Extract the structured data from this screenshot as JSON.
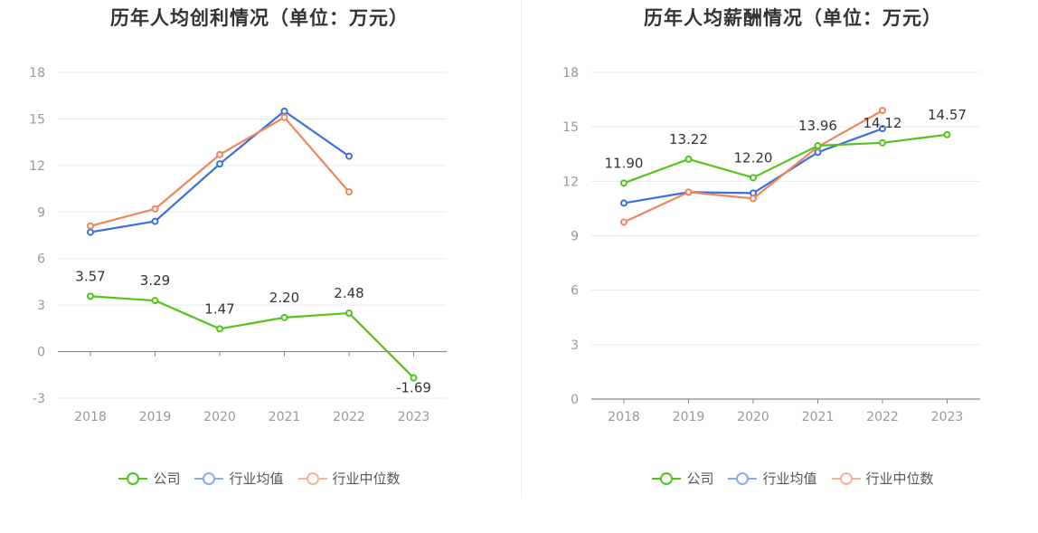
{
  "chart_data": [
    {
      "type": "line",
      "title": "历年人均创利情况（单位：万元）",
      "categories": [
        "2018",
        "2019",
        "2020",
        "2021",
        "2022",
        "2023"
      ],
      "ylim": [
        -3,
        18
      ],
      "yticks": [
        -3,
        0,
        3,
        6,
        9,
        12,
        15,
        18
      ],
      "grid": true,
      "legend_position": "bottom",
      "series": [
        {
          "name": "公司",
          "color": "#52c41a",
          "values": [
            3.57,
            3.29,
            1.47,
            2.2,
            2.48,
            -1.69
          ],
          "labels": [
            "3.57",
            "3.29",
            "1.47",
            "2.20",
            "2.48",
            "-1.69"
          ]
        },
        {
          "name": "行业均值",
          "color": "#3b6fe0",
          "values": [
            7.7,
            8.4,
            12.1,
            15.5,
            12.6,
            null
          ]
        },
        {
          "name": "行业中位数",
          "color": "#f0845a",
          "values": [
            8.1,
            9.2,
            12.7,
            15.1,
            10.3,
            null
          ]
        }
      ]
    },
    {
      "type": "line",
      "title": "历年人均薪酬情况（单位：万元）",
      "categories": [
        "2018",
        "2019",
        "2020",
        "2021",
        "2022",
        "2023"
      ],
      "ylim": [
        0,
        18
      ],
      "yticks": [
        0,
        3,
        6,
        9,
        12,
        15,
        18
      ],
      "grid": true,
      "legend_position": "bottom",
      "series": [
        {
          "name": "公司",
          "color": "#52c41a",
          "values": [
            11.9,
            13.22,
            12.2,
            13.96,
            14.12,
            14.57
          ],
          "labels": [
            "11.90",
            "13.22",
            "12.20",
            "13.96",
            "14.12",
            "14.57"
          ]
        },
        {
          "name": "行业均值",
          "color": "#3b6fe0",
          "values": [
            10.8,
            11.4,
            11.35,
            13.6,
            14.9,
            null
          ]
        },
        {
          "name": "行业中位数",
          "color": "#f0845a",
          "values": [
            9.75,
            11.4,
            11.05,
            13.9,
            15.9,
            null
          ]
        }
      ]
    }
  ],
  "legend": {
    "items": [
      {
        "label": "公司",
        "color": "#52c41a"
      },
      {
        "label": "行业均值",
        "color": "#8aabeb"
      },
      {
        "label": "行业中位数",
        "color": "#f5b49a"
      }
    ]
  }
}
